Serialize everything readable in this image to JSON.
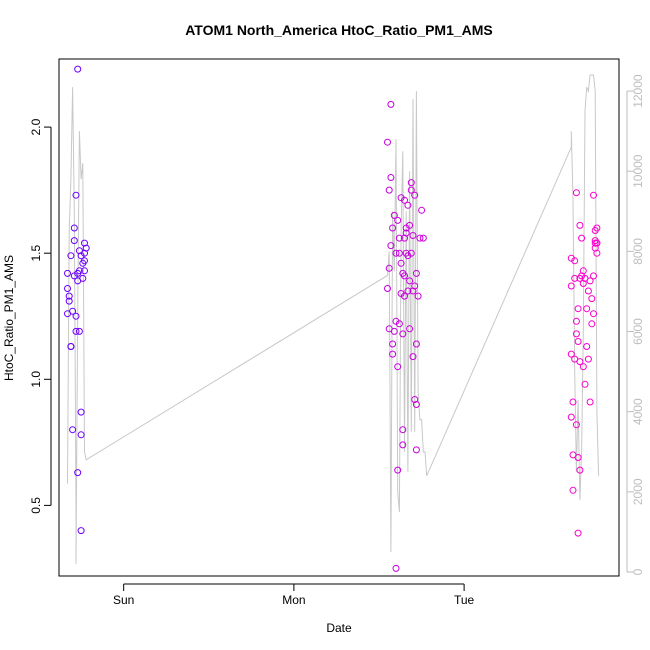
{
  "chart_data": {
    "type": "scatter",
    "title": "ATOM1 North_America HtoC_Ratio_PM1_AMS",
    "xlabel": "Date",
    "ylabel": "HtoC_Ratio_PM1_AMS",
    "x_unit": "days since Sunday 00:00",
    "xlim": [
      -0.38,
      2.91
    ],
    "x_ticks": [
      {
        "value": 0,
        "label": "Sun"
      },
      {
        "value": 1,
        "label": "Mon"
      },
      {
        "value": 2,
        "label": "Tue"
      }
    ],
    "ylim": [
      0.22,
      2.27
    ],
    "y_ticks": [
      0.5,
      1.0,
      1.5,
      2.0
    ],
    "y2lim": [
      -100,
      12800
    ],
    "y2_ticks": [
      0,
      2000,
      4000,
      6000,
      8000,
      10000,
      12000
    ],
    "legend": "none",
    "grid": false,
    "colors": {
      "scatter_start": "#6a00ff",
      "scatter_end": "#ff00cc",
      "secondary_line": "#c8c8c8",
      "axis": "#000000"
    },
    "series": [
      {
        "type": "scatter",
        "axis": "left",
        "points": [
          [
            -0.33,
            1.26
          ],
          [
            -0.33,
            1.36
          ],
          [
            -0.33,
            1.42
          ],
          [
            -0.32,
            1.31
          ],
          [
            -0.32,
            1.33
          ],
          [
            -0.31,
            1.49
          ],
          [
            -0.31,
            1.13
          ],
          [
            -0.31,
            1.13
          ],
          [
            -0.3,
            0.8
          ],
          [
            -0.3,
            1.27
          ],
          [
            -0.29,
            1.55
          ],
          [
            -0.29,
            1.6
          ],
          [
            -0.29,
            1.41
          ],
          [
            -0.28,
            1.73
          ],
          [
            -0.28,
            1.25
          ],
          [
            -0.28,
            1.19
          ],
          [
            -0.27,
            1.42
          ],
          [
            -0.27,
            1.39
          ],
          [
            -0.27,
            0.63
          ],
          [
            -0.27,
            2.23
          ],
          [
            -0.26,
            1.43
          ],
          [
            -0.26,
            1.51
          ],
          [
            -0.26,
            1.19
          ],
          [
            -0.25,
            1.49
          ],
          [
            -0.25,
            0.87
          ],
          [
            -0.25,
            0.78
          ],
          [
            -0.25,
            0.4
          ],
          [
            -0.24,
            1.4
          ],
          [
            -0.24,
            1.46
          ],
          [
            -0.23,
            1.54
          ],
          [
            -0.23,
            1.43
          ],
          [
            -0.23,
            1.5
          ],
          [
            -0.23,
            1.47
          ],
          [
            -0.22,
            1.52
          ],
          [
            1.55,
            1.94
          ],
          [
            1.55,
            1.36
          ],
          [
            1.56,
            1.2
          ],
          [
            1.56,
            1.44
          ],
          [
            1.56,
            1.75
          ],
          [
            1.57,
            1.53
          ],
          [
            1.57,
            1.8
          ],
          [
            1.57,
            2.09
          ],
          [
            1.58,
            1.6
          ],
          [
            1.58,
            1.14
          ],
          [
            1.58,
            1.1
          ],
          [
            1.59,
            1.19
          ],
          [
            1.59,
            1.65
          ],
          [
            1.6,
            1.23
          ],
          [
            1.6,
            1.5
          ],
          [
            1.6,
            0.25
          ],
          [
            1.61,
            0.64
          ],
          [
            1.61,
            1.05
          ],
          [
            1.61,
            1.63
          ],
          [
            1.62,
            1.22
          ],
          [
            1.62,
            1.56
          ],
          [
            1.62,
            1.5
          ],
          [
            1.63,
            1.46
          ],
          [
            1.63,
            1.72
          ],
          [
            1.63,
            1.34
          ],
          [
            1.64,
            1.18
          ],
          [
            1.64,
            0.8
          ],
          [
            1.64,
            1.42
          ],
          [
            1.64,
            0.74
          ],
          [
            1.65,
            1.71
          ],
          [
            1.65,
            1.56
          ],
          [
            1.65,
            1.41
          ],
          [
            1.65,
            1.33
          ],
          [
            1.66,
            1.6
          ],
          [
            1.66,
            1.58
          ],
          [
            1.66,
            1.5
          ],
          [
            1.67,
            1.69
          ],
          [
            1.67,
            1.49
          ],
          [
            1.67,
            1.35
          ],
          [
            1.68,
            1.61
          ],
          [
            1.68,
            1.2
          ],
          [
            1.68,
            1.39
          ],
          [
            1.69,
            1.75
          ],
          [
            1.69,
            1.78
          ],
          [
            1.69,
            1.5
          ],
          [
            1.7,
            1.57
          ],
          [
            1.7,
            1.09
          ],
          [
            1.7,
            1.35
          ],
          [
            1.71,
            1.73
          ],
          [
            1.71,
            1.37
          ],
          [
            1.71,
            0.92
          ],
          [
            1.72,
            1.42
          ],
          [
            1.72,
            1.14
          ],
          [
            1.72,
            0.72
          ],
          [
            1.72,
            0.9
          ],
          [
            1.73,
            1.33
          ],
          [
            1.74,
            1.56
          ],
          [
            1.75,
            1.67
          ],
          [
            1.76,
            1.56
          ],
          [
            2.63,
            1.37
          ],
          [
            2.63,
            0.85
          ],
          [
            2.63,
            1.48
          ],
          [
            2.63,
            1.1
          ],
          [
            2.64,
            0.91
          ],
          [
            2.64,
            0.7
          ],
          [
            2.64,
            0.56
          ],
          [
            2.65,
            1.47
          ],
          [
            2.65,
            1.4
          ],
          [
            2.65,
            1.08
          ],
          [
            2.66,
            1.18
          ],
          [
            2.66,
            1.74
          ],
          [
            2.66,
            1.23
          ],
          [
            2.66,
            0.82
          ],
          [
            2.67,
            1.28
          ],
          [
            2.67,
            1.15
          ],
          [
            2.67,
            0.69
          ],
          [
            2.67,
            0.39
          ],
          [
            2.68,
            1.61
          ],
          [
            2.68,
            1.07
          ],
          [
            2.68,
            1.4
          ],
          [
            2.68,
            0.64
          ],
          [
            2.69,
            1.56
          ],
          [
            2.69,
            1.41
          ],
          [
            2.7,
            1.38
          ],
          [
            2.7,
            1.05
          ],
          [
            2.7,
            1.43
          ],
          [
            2.71,
            0.98
          ],
          [
            2.71,
            1.4
          ],
          [
            2.72,
            1.13
          ],
          [
            2.72,
            1.28
          ],
          [
            2.73,
            1.35
          ],
          [
            2.73,
            1.08
          ],
          [
            2.74,
            0.91
          ],
          [
            2.74,
            1.39
          ],
          [
            2.75,
            1.32
          ],
          [
            2.75,
            1.22
          ],
          [
            2.76,
            1.73
          ],
          [
            2.76,
            1.26
          ],
          [
            2.76,
            1.41
          ],
          [
            2.77,
            1.59
          ],
          [
            2.77,
            1.52
          ],
          [
            2.77,
            1.55
          ],
          [
            2.77,
            1.54
          ],
          [
            2.78,
            1.6
          ],
          [
            2.78,
            1.5
          ],
          [
            2.78,
            1.54
          ],
          [
            2.78,
            1.54
          ]
        ]
      },
      {
        "type": "line",
        "axis": "right",
        "points": [
          [
            -0.33,
            2200
          ],
          [
            -0.32,
            8500
          ],
          [
            -0.31,
            9800
          ],
          [
            -0.3,
            12100
          ],
          [
            -0.29,
            9000
          ],
          [
            -0.28,
            1500
          ],
          [
            -0.28,
            200
          ],
          [
            -0.27,
            6500
          ],
          [
            -0.26,
            11000
          ],
          [
            -0.25,
            9800
          ],
          [
            -0.24,
            10200
          ],
          [
            -0.23,
            3000
          ],
          [
            -0.22,
            2800
          ],
          [
            1.55,
            7400
          ],
          [
            1.56,
            8000
          ],
          [
            1.57,
            500
          ],
          [
            1.58,
            9000
          ],
          [
            1.59,
            7500
          ],
          [
            1.6,
            10800
          ],
          [
            1.61,
            2000
          ],
          [
            1.62,
            1500
          ],
          [
            1.63,
            8500
          ],
          [
            1.64,
            10500
          ],
          [
            1.65,
            3000
          ],
          [
            1.66,
            9000
          ],
          [
            1.67,
            2500
          ],
          [
            1.68,
            10000
          ],
          [
            1.69,
            3500
          ],
          [
            1.7,
            11800
          ],
          [
            1.71,
            3500
          ],
          [
            1.72,
            12000
          ],
          [
            1.73,
            4500
          ],
          [
            1.74,
            3800
          ],
          [
            1.75,
            3800
          ],
          [
            1.76,
            3000
          ],
          [
            1.77,
            3000
          ],
          [
            1.78,
            2400
          ],
          [
            2.63,
            10600
          ],
          [
            2.63,
            11000
          ],
          [
            2.64,
            9300
          ],
          [
            2.65,
            5000
          ],
          [
            2.66,
            2500
          ],
          [
            2.67,
            4300
          ],
          [
            2.68,
            1800
          ],
          [
            2.69,
            3000
          ],
          [
            2.7,
            6000
          ],
          [
            2.71,
            11500
          ],
          [
            2.72,
            12100
          ],
          [
            2.73,
            12000
          ],
          [
            2.74,
            12400
          ],
          [
            2.75,
            12400
          ],
          [
            2.76,
            12400
          ],
          [
            2.77,
            12000
          ],
          [
            2.78,
            4000
          ],
          [
            2.79,
            2400
          ]
        ]
      }
    ]
  }
}
